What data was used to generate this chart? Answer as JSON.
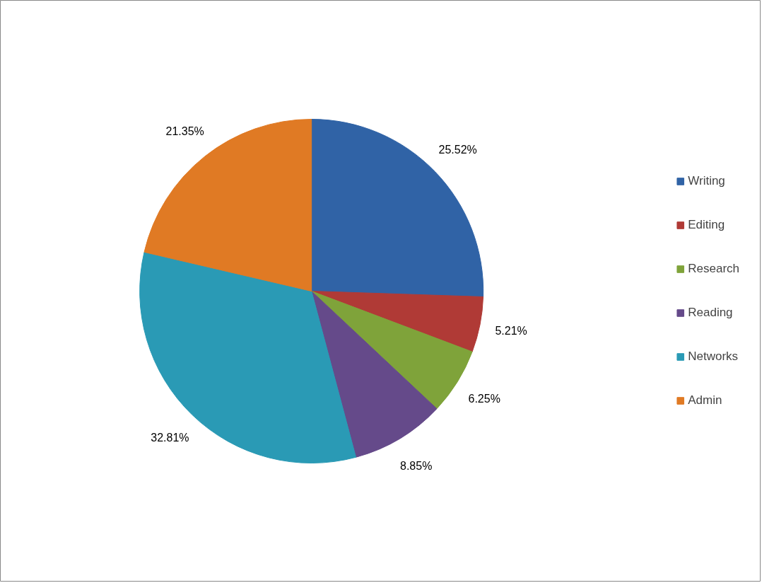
{
  "chart_data": {
    "type": "pie",
    "categories": [
      "Writing",
      "Editing",
      "Research",
      "Reading",
      "Networks",
      "Admin"
    ],
    "values": [
      25.52,
      5.21,
      6.25,
      8.85,
      32.81,
      21.35
    ],
    "colors": [
      "#3063a6",
      "#b03a36",
      "#7fa33a",
      "#654a8a",
      "#2a9ab5",
      "#e07a24"
    ],
    "value_labels": [
      "25.52%",
      "5.21%",
      "6.25%",
      "8.85%",
      "32.81%",
      "21.35%"
    ],
    "legend": "right"
  }
}
